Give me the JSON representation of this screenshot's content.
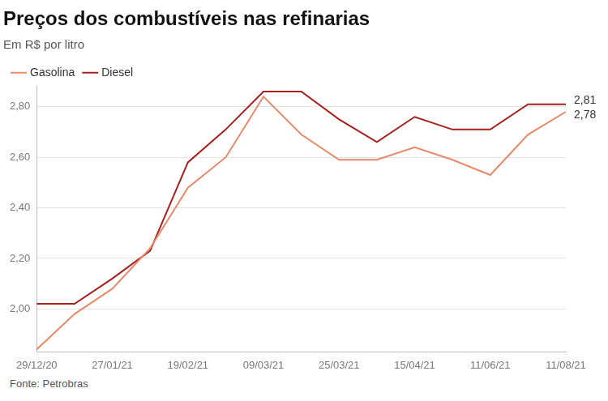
{
  "chart_data": {
    "type": "line",
    "title": "Preços dos combustíveis nas refinarias",
    "subtitle": "Em R$ por litro",
    "source": "Fonte: Petrobras",
    "categories": [
      "29/12/20",
      null,
      "27/01/21",
      null,
      "19/02/21",
      null,
      "09/03/21",
      null,
      "25/03/21",
      null,
      "15/04/21",
      null,
      "11/06/21",
      null,
      "11/08/21"
    ],
    "series": [
      {
        "name": "Gasolina",
        "color": "#e8896a",
        "values": [
          1.84,
          1.98,
          2.08,
          2.24,
          2.48,
          2.6,
          2.84,
          2.69,
          2.59,
          2.59,
          2.64,
          2.59,
          2.53,
          2.69,
          2.78
        ]
      },
      {
        "name": "Diesel",
        "color": "#a91f1c",
        "values": [
          2.02,
          2.02,
          2.12,
          2.23,
          2.58,
          2.71,
          2.86,
          2.86,
          2.75,
          2.66,
          2.76,
          2.71,
          2.71,
          2.81,
          2.81
        ]
      }
    ],
    "annotations": [
      {
        "text": "2,81",
        "x": "11/08/21",
        "y": 2.81
      },
      {
        "text": "2,78",
        "x": "11/08/21",
        "y": 2.78
      }
    ],
    "ylim": [
      1.83,
      2.88
    ],
    "yticks": [
      {
        "value": 2.0,
        "label": "2,00"
      },
      {
        "value": 2.2,
        "label": "2,20"
      },
      {
        "value": 2.4,
        "label": "2,40"
      },
      {
        "value": 2.6,
        "label": "2,60"
      },
      {
        "value": 2.8,
        "label": "2,80"
      }
    ],
    "grid": true,
    "legend": "top-left"
  }
}
